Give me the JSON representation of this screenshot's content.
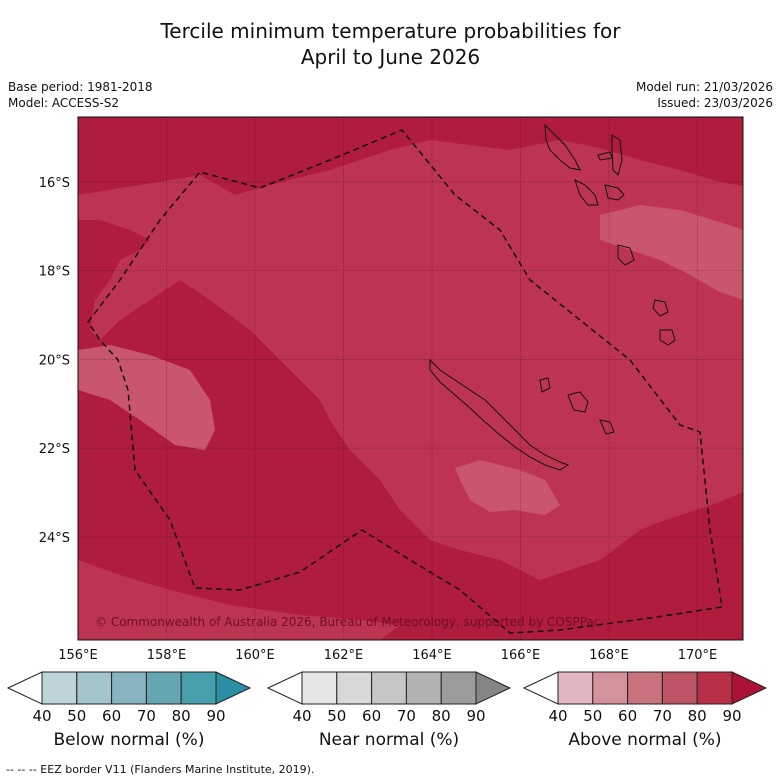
{
  "title": {
    "line1": "Tercile minimum temperature probabilities for",
    "line2": "April to June 2026"
  },
  "meta": {
    "base_period": "Base period: 1981-2018",
    "model": "Model: ACCESS-S2",
    "model_run": "Model run: 21/03/2026",
    "issued": "Issued: 23/03/2026"
  },
  "map": {
    "lon_labels": [
      "156°E",
      "158°E",
      "160°E",
      "162°E",
      "164°E",
      "166°E",
      "168°E",
      "170°E"
    ],
    "lat_labels": [
      "16°S",
      "18°S",
      "20°S",
      "22°S",
      "24°S"
    ],
    "copyright": "© Commonwealth of Australia 2026, Bureau of Meteorology, supported by COSPPac",
    "colors": {
      "above_90": "#b01c3c",
      "above_80": "#bd3450",
      "above_70": "#c9566a",
      "border": "#111111",
      "coast": "#111111"
    }
  },
  "colorbars": [
    {
      "name": "below",
      "label": "Below normal (%)",
      "ticks": [
        "40",
        "50",
        "60",
        "70",
        "80",
        "90"
      ],
      "colors": [
        "#ffffff",
        "#bed3da",
        "#a3c6cd",
        "#86b5c0",
        "#66a6b2",
        "#48a0ae",
        "#2a8fa0"
      ]
    },
    {
      "name": "near",
      "label": "Near normal (%)",
      "ticks": [
        "40",
        "50",
        "60",
        "70",
        "80",
        "90"
      ],
      "colors": [
        "#ffffff",
        "#e6e6e6",
        "#d8d8d8",
        "#c6c6c6",
        "#b2b2b2",
        "#9c9c9c",
        "#858585"
      ]
    },
    {
      "name": "above",
      "label": "Above normal (%)",
      "ticks": [
        "40",
        "50",
        "60",
        "70",
        "80",
        "90"
      ],
      "colors": [
        "#ffffff",
        "#e0b7bf",
        "#d4939c",
        "#c8737e",
        "#bf5466",
        "#b83048",
        "#ac1236"
      ]
    }
  ],
  "footer": "--  --  -- EEZ border V11 (Flanders Marine Institute, 2019)."
}
